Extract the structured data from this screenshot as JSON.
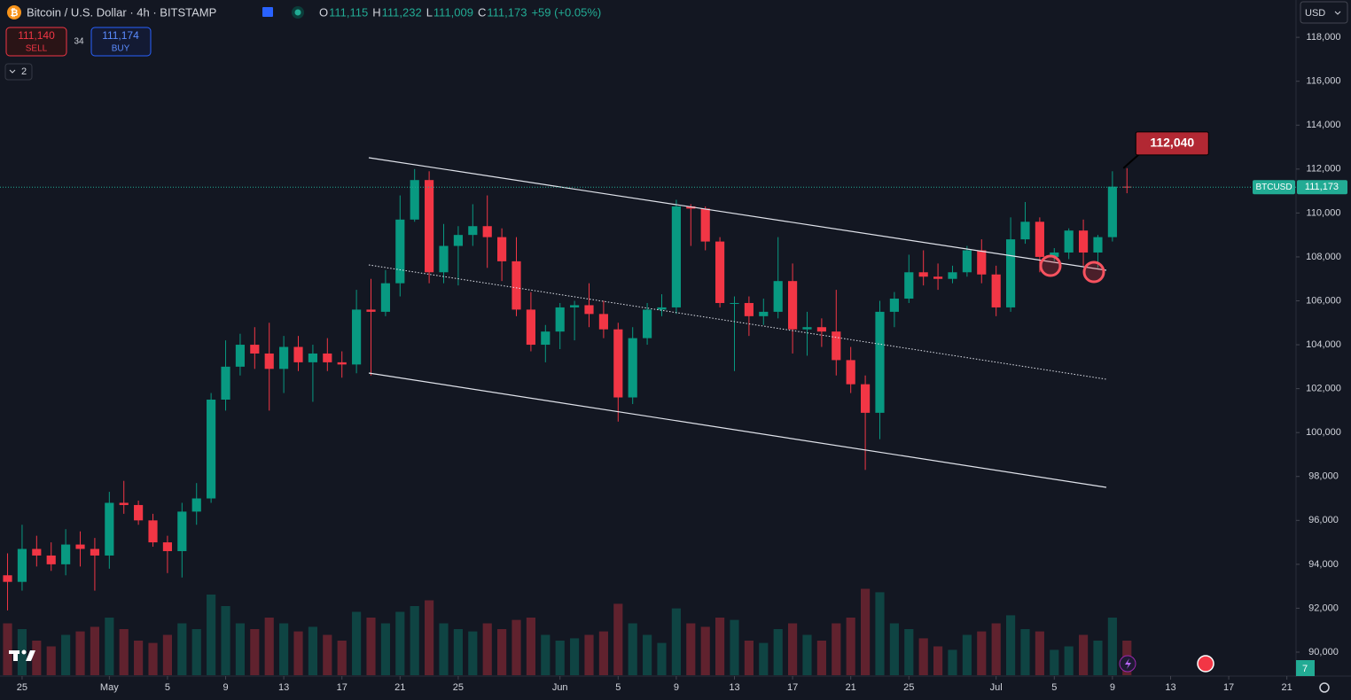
{
  "header": {
    "symbol": "Bitcoin / U.S. Dollar · 4h · BITSTAMP",
    "ohlc": [
      {
        "label": "O",
        "value": "111,115"
      },
      {
        "label": "H",
        "value": "111,232"
      },
      {
        "label": "L",
        "value": "111,009"
      },
      {
        "label": "C",
        "value": "111,173"
      }
    ],
    "change": "+59 (+0.05%)",
    "sell_price": "111,140",
    "sell_label": "SELL",
    "spread": "34",
    "buy_price": "111,174",
    "buy_label": "BUY",
    "indicators_count": "2",
    "currency": "USD",
    "alerts_count": "7"
  },
  "chart_data": {
    "type": "candlestick",
    "symbol_label": "BTCUSD",
    "up_color": "#089981",
    "down_color": "#f23645",
    "last_price": {
      "value": 111173,
      "label": "111,173"
    },
    "high_callout": {
      "value": 112040,
      "label": "112,040"
    },
    "grid": false,
    "xlim": [
      -1.52,
      87.63
    ],
    "ylim": [
      88950,
      119700
    ],
    "volume_lim": [
      0,
      100
    ],
    "xticks": [
      {
        "value": 0,
        "label": "25"
      },
      {
        "value": 6,
        "label": "May"
      },
      {
        "value": 10,
        "label": "5"
      },
      {
        "value": 14,
        "label": "9"
      },
      {
        "value": 18,
        "label": "13"
      },
      {
        "value": 22,
        "label": "17"
      },
      {
        "value": 26,
        "label": "21"
      },
      {
        "value": 30,
        "label": "25"
      },
      {
        "value": 37,
        "label": "Jun"
      },
      {
        "value": 41,
        "label": "5"
      },
      {
        "value": 45,
        "label": "9"
      },
      {
        "value": 49,
        "label": "13"
      },
      {
        "value": 53,
        "label": "17"
      },
      {
        "value": 57,
        "label": "21"
      },
      {
        "value": 61,
        "label": "25"
      },
      {
        "value": 67,
        "label": "Jul"
      },
      {
        "value": 71,
        "label": "5"
      },
      {
        "value": 75,
        "label": "9"
      },
      {
        "value": 79,
        "label": "13"
      },
      {
        "value": 83,
        "label": "17"
      },
      {
        "value": 87,
        "label": "21"
      }
    ],
    "yticks": [
      {
        "value": 90000,
        "label": "90,000"
      },
      {
        "value": 92000,
        "label": "92,000"
      },
      {
        "value": 94000,
        "label": "94,000"
      },
      {
        "value": 96000,
        "label": "96,000"
      },
      {
        "value": 98000,
        "label": "98,000"
      },
      {
        "value": 100000,
        "label": "100,000"
      },
      {
        "value": 102000,
        "label": "102,000"
      },
      {
        "value": 104000,
        "label": "104,000"
      },
      {
        "value": 106000,
        "label": "106,000"
      },
      {
        "value": 108000,
        "label": "108,000"
      },
      {
        "value": 110000,
        "label": "110,000"
      },
      {
        "value": 112000,
        "label": "112,000"
      },
      {
        "value": 114000,
        "label": "114,000"
      },
      {
        "value": 116000,
        "label": "116,000"
      },
      {
        "value": 118000,
        "label": "118,000"
      }
    ],
    "x": [
      -1,
      0,
      1,
      2,
      3,
      4,
      5,
      6,
      7,
      8,
      9,
      10,
      11,
      12,
      13,
      14,
      15,
      16,
      17,
      18,
      19,
      20,
      21,
      22,
      23,
      24,
      25,
      26,
      27,
      28,
      29,
      30,
      31,
      32,
      33,
      34,
      35,
      36,
      37,
      38,
      39,
      40,
      41,
      42,
      43,
      44,
      45,
      46,
      47,
      48,
      49,
      50,
      51,
      52,
      53,
      54,
      55,
      56,
      57,
      58,
      59,
      60,
      61,
      62,
      63,
      64,
      65,
      66,
      67,
      68,
      69,
      70,
      71,
      72,
      73,
      74,
      75,
      76
    ],
    "open": [
      93500,
      93200,
      94700,
      94400,
      94000,
      94900,
      94700,
      94400,
      96800,
      96700,
      96000,
      95000,
      94600,
      96400,
      97000,
      101500,
      103000,
      104000,
      103600,
      102900,
      103900,
      103200,
      103600,
      103200,
      103100,
      105600,
      105500,
      106800,
      109700,
      111500,
      107300,
      108500,
      109000,
      109400,
      108900,
      107800,
      105600,
      104000,
      104600,
      105700,
      105800,
      105400,
      104700,
      101600,
      104300,
      105600,
      105700,
      110300,
      110200,
      108700,
      105900,
      105900,
      105300,
      105500,
      106900,
      104700,
      104800,
      104600,
      103300,
      102200,
      100900,
      105500,
      106100,
      107300,
      107100,
      107000,
      107300,
      108300,
      107200,
      105700,
      108800,
      109600,
      108000,
      108200,
      109200,
      108200,
      108900,
      111200
    ],
    "high": [
      94500,
      95800,
      95300,
      95000,
      95600,
      95500,
      95200,
      97300,
      97800,
      96900,
      96300,
      95300,
      96800,
      97700,
      101800,
      104200,
      104500,
      104800,
      105000,
      104400,
      104400,
      104000,
      104300,
      103700,
      106500,
      107000,
      107400,
      110800,
      112000,
      111900,
      109500,
      109400,
      110400,
      110800,
      109300,
      108900,
      106400,
      104900,
      105900,
      106000,
      106800,
      106000,
      105000,
      104800,
      105900,
      106300,
      110600,
      110400,
      110300,
      108900,
      106200,
      106200,
      106100,
      108900,
      107700,
      105500,
      105200,
      106500,
      103900,
      102600,
      106000,
      106400,
      108100,
      108300,
      107700,
      107600,
      108500,
      108800,
      107600,
      109800,
      110500,
      109800,
      108400,
      109300,
      109700,
      109000,
      111900,
      112040
    ],
    "low": [
      91900,
      92800,
      93900,
      93700,
      93500,
      93900,
      92800,
      93800,
      96300,
      95800,
      94800,
      93600,
      93400,
      95800,
      96800,
      101000,
      102600,
      102900,
      101000,
      101800,
      102800,
      101400,
      102800,
      102500,
      102700,
      102600,
      105300,
      106200,
      109600,
      106800,
      106800,
      106700,
      108500,
      107500,
      106900,
      105300,
      103700,
      103200,
      103800,
      104200,
      104800,
      104300,
      100500,
      101300,
      104000,
      105300,
      105400,
      108500,
      108300,
      105700,
      102800,
      104400,
      104900,
      105200,
      103600,
      103500,
      103900,
      102600,
      101800,
      98300,
      99700,
      104800,
      105900,
      106700,
      106500,
      106800,
      107100,
      106800,
      105300,
      105500,
      108600,
      107300,
      107800,
      107900,
      107600,
      107500,
      108700,
      110900
    ],
    "close": [
      93200,
      94700,
      94400,
      94000,
      94900,
      94700,
      94400,
      96800,
      96700,
      96000,
      95000,
      94600,
      96400,
      97000,
      101500,
      103000,
      104000,
      103600,
      102900,
      103900,
      103200,
      103600,
      103200,
      103100,
      105600,
      105500,
      106800,
      109700,
      111500,
      107300,
      108500,
      109000,
      109400,
      108900,
      107800,
      105600,
      104000,
      104600,
      105700,
      105800,
      105400,
      104700,
      101600,
      104300,
      105600,
      105700,
      110300,
      110200,
      108700,
      105900,
      105900,
      105300,
      105500,
      106900,
      104700,
      104800,
      104600,
      103300,
      102200,
      100900,
      105500,
      106100,
      107300,
      107100,
      107000,
      107300,
      108300,
      107200,
      105700,
      108800,
      109600,
      108000,
      108200,
      109200,
      108200,
      108900,
      111200,
      111173
    ],
    "volume": [
      45,
      40,
      30,
      25,
      35,
      38,
      42,
      50,
      40,
      30,
      28,
      35,
      45,
      40,
      70,
      60,
      45,
      40,
      50,
      45,
      38,
      42,
      35,
      30,
      55,
      50,
      45,
      55,
      60,
      65,
      45,
      40,
      38,
      45,
      40,
      48,
      50,
      35,
      30,
      32,
      35,
      38,
      62,
      45,
      35,
      28,
      58,
      45,
      42,
      50,
      48,
      30,
      28,
      40,
      45,
      35,
      30,
      45,
      50,
      75,
      72,
      45,
      40,
      32,
      25,
      22,
      35,
      38,
      45,
      52,
      40,
      38,
      22,
      25,
      35,
      30,
      50,
      30
    ]
  }
}
